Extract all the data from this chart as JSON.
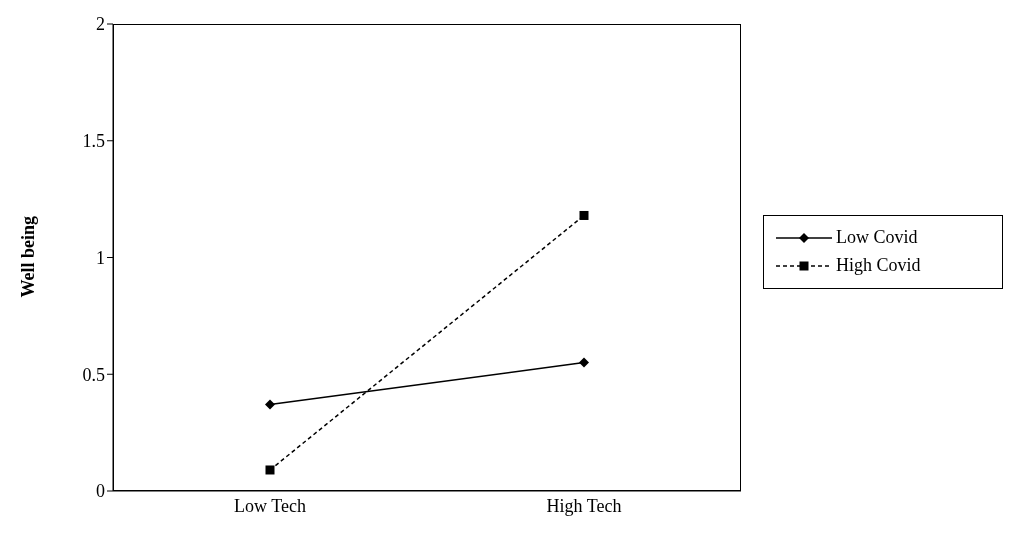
{
  "chart_data": {
    "type": "line",
    "ylabel": "Well being",
    "categories": [
      "Low Tech",
      "High Tech"
    ],
    "series": [
      {
        "name": "Low Covid",
        "color": "#000000",
        "values": [
          0.37,
          0.55
        ],
        "marker": "diamond",
        "line_style": "solid"
      },
      {
        "name": "High Covid",
        "color": "#000000",
        "values": [
          0.09,
          1.18
        ],
        "marker": "square",
        "line_style": "dashed"
      }
    ],
    "ylim": [
      0,
      2
    ],
    "yticks": [
      0,
      0.5,
      1,
      1.5,
      2
    ],
    "grid": false,
    "legend": "right"
  }
}
